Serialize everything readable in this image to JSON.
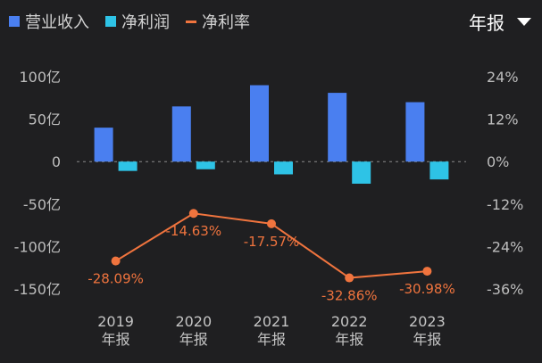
{
  "legend": [
    {
      "label": "营业收入",
      "color": "#4a7ff0",
      "shape": "square"
    },
    {
      "label": "净利润",
      "color": "#2ec3e6",
      "shape": "square"
    },
    {
      "label": "净利率",
      "color": "#f0743e",
      "shape": "line"
    }
  ],
  "period_selector": {
    "label": "年报"
  },
  "chart_data": {
    "type": "bar",
    "categories": [
      "2019",
      "2020",
      "2021",
      "2022",
      "2023"
    ],
    "category_sublabel": "年报",
    "series": [
      {
        "name": "营业收入",
        "type": "bar",
        "axis": "left",
        "color": "#4a7ff0",
        "values": [
          40,
          65,
          90,
          81,
          70
        ]
      },
      {
        "name": "净利润",
        "type": "bar",
        "axis": "left",
        "color": "#2ec3e6",
        "values": [
          -11,
          -9,
          -15,
          -26,
          -21
        ]
      },
      {
        "name": "净利率",
        "type": "line",
        "axis": "right",
        "color": "#f0743e",
        "values": [
          -28.09,
          -14.63,
          -17.57,
          -32.86,
          -30.98
        ],
        "labels": [
          "-28.09%",
          "-14.63%",
          "-17.57%",
          "-32.86%",
          "-30.98%"
        ]
      }
    ],
    "left_axis": {
      "ticks": [
        100,
        50,
        0,
        -50,
        -100,
        -150
      ],
      "tick_labels": [
        "100亿",
        "50亿",
        "0",
        "-50亿",
        "-100亿",
        "-150亿"
      ],
      "range": [
        -150,
        100
      ]
    },
    "right_axis": {
      "ticks": [
        24,
        12,
        0,
        -12,
        -24,
        -36
      ],
      "tick_labels": [
        "24%",
        "12%",
        "0%",
        "-12%",
        "-24%",
        "-36%"
      ],
      "range": [
        -36,
        24
      ]
    },
    "zero_line": "dashed",
    "grid": false,
    "legend_position": "top-left"
  }
}
